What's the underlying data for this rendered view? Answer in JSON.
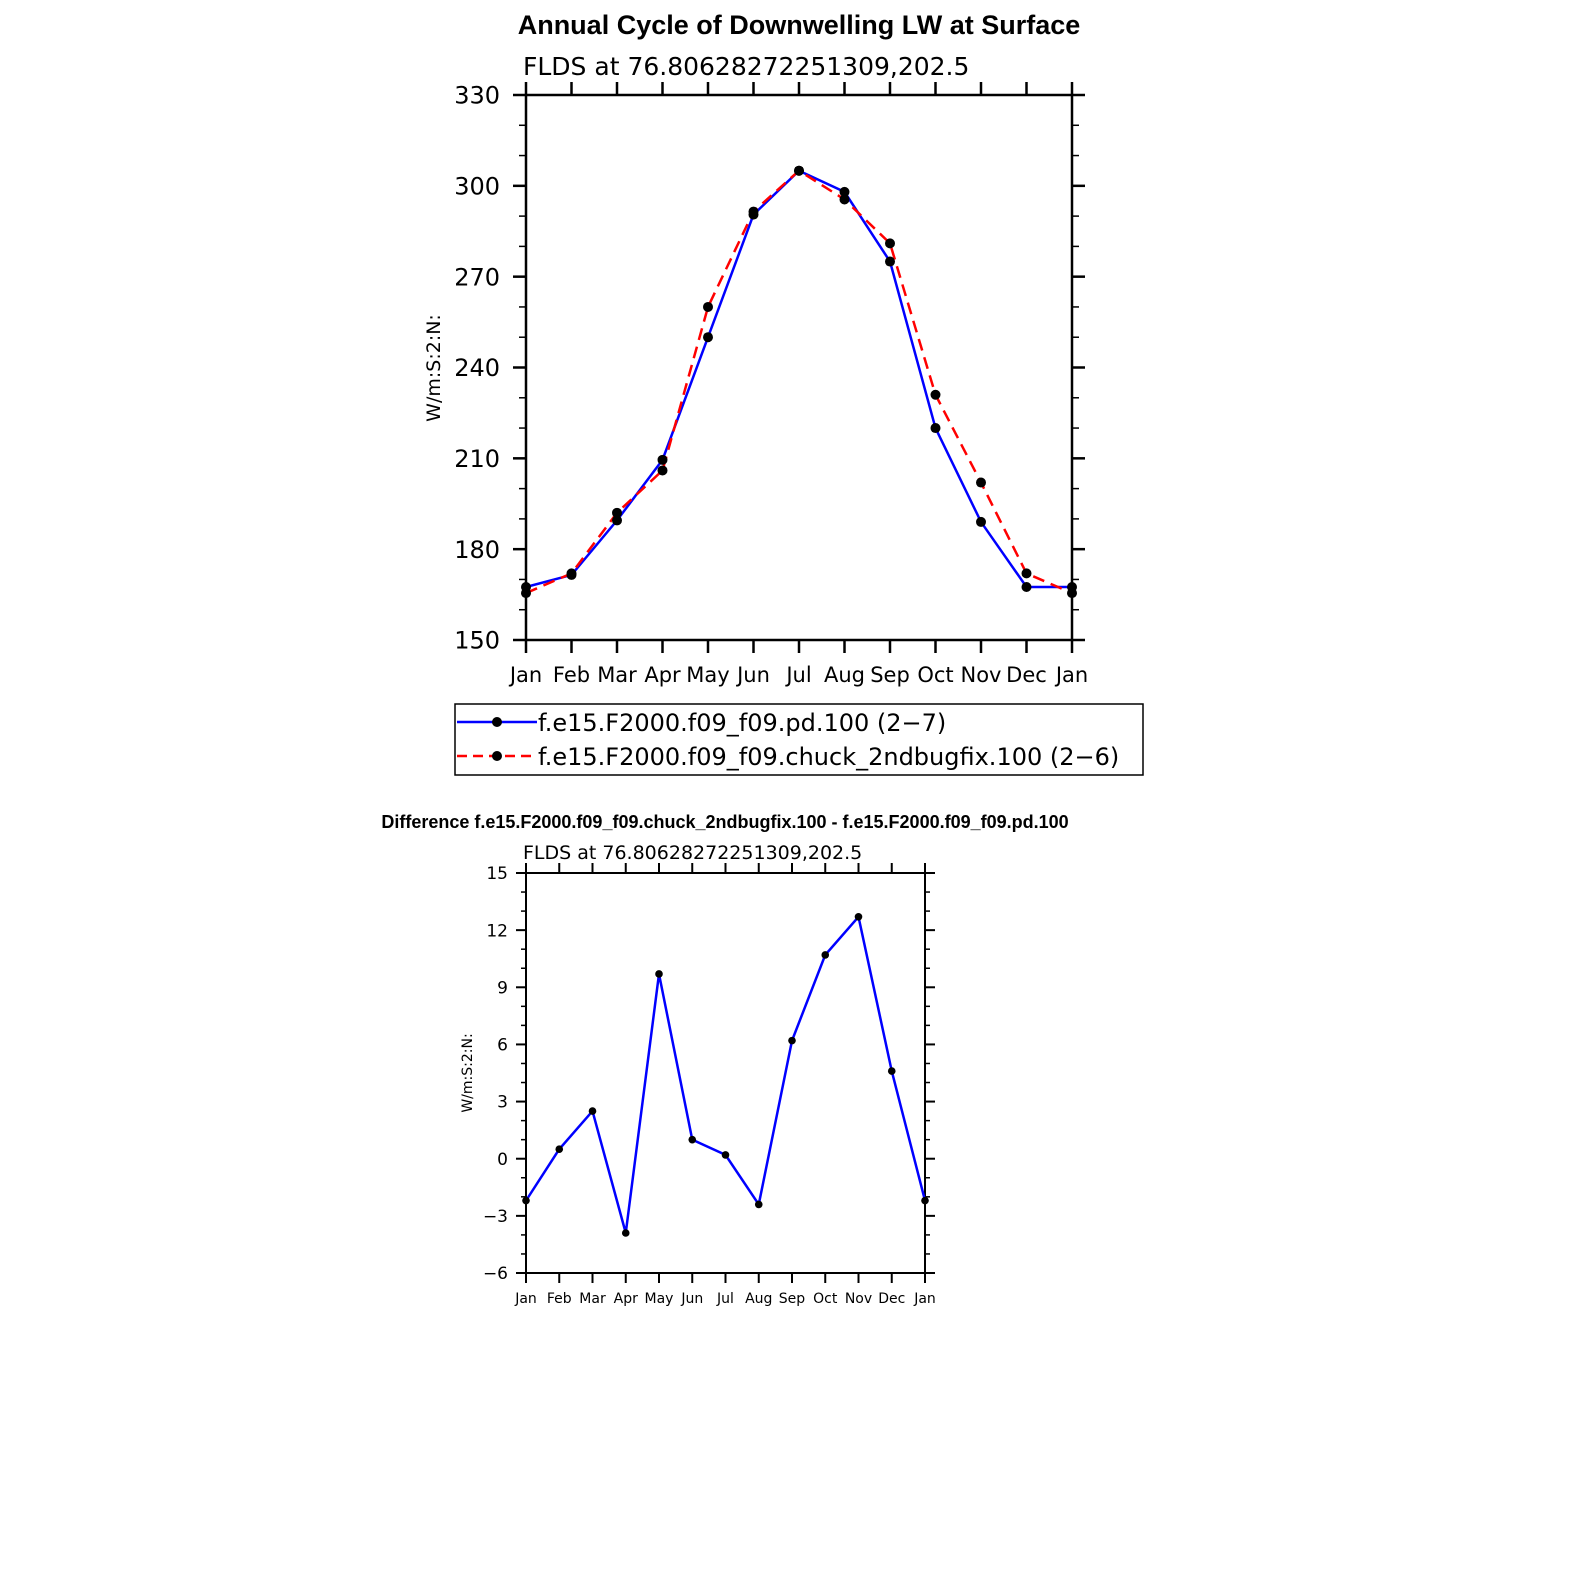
{
  "chart_data": [
    {
      "type": "line",
      "title": "Annual Cycle of Downwelling LW at Surface",
      "subtitle": "FLDS at 76.80628272251309,202.5",
      "ylabel": "W/m:S:2:N:",
      "xlabel": "",
      "categories": [
        "Jan",
        "Feb",
        "Mar",
        "Apr",
        "May",
        "Jun",
        "Jul",
        "Aug",
        "Sep",
        "Oct",
        "Nov",
        "Dec",
        "Jan"
      ],
      "ylim": [
        150,
        330
      ],
      "yticks": [
        150,
        180,
        210,
        240,
        270,
        300,
        330
      ],
      "grid": false,
      "legend_position": "bottom",
      "series": [
        {
          "name": "f.e15.F2000.f09_f09.pd.100 (2−7)",
          "color": "#0000ff",
          "dash": "solid",
          "values": [
            167.5,
            171.5,
            189.5,
            209.5,
            250.0,
            290.5,
            305.0,
            298.0,
            275.0,
            220.0,
            189.0,
            167.5,
            167.5
          ]
        },
        {
          "name": "f.e15.F2000.f09_f09.chuck_2ndbugfix.100 (2−6)",
          "color": "#ff0000",
          "dash": "dashed",
          "values": [
            165.5,
            172.0,
            192.0,
            206.0,
            260.0,
            291.5,
            305.0,
            295.5,
            281.0,
            231.0,
            202.0,
            172.0,
            165.5
          ]
        }
      ]
    },
    {
      "type": "line",
      "title": "Difference f.e15.F2000.f09_f09.chuck_2ndbugfix.100 - f.e15.F2000.f09_f09.pd.100",
      "subtitle": "FLDS at 76.80628272251309,202.5",
      "ylabel": "W/m:S:2:N:",
      "xlabel": "",
      "categories": [
        "Jan",
        "Feb",
        "Mar",
        "Apr",
        "May",
        "Jun",
        "Jul",
        "Aug",
        "Sep",
        "Oct",
        "Nov",
        "Dec",
        "Jan"
      ],
      "ylim": [
        -6,
        15
      ],
      "yticks": [
        -6,
        -3,
        0,
        3,
        6,
        9,
        12,
        15
      ],
      "grid": false,
      "series": [
        {
          "color": "#0000ff",
          "values": [
            -2.2,
            0.5,
            2.5,
            -3.9,
            9.7,
            1.0,
            0.2,
            -2.4,
            6.2,
            10.7,
            12.7,
            4.6,
            -2.2
          ]
        }
      ]
    }
  ]
}
